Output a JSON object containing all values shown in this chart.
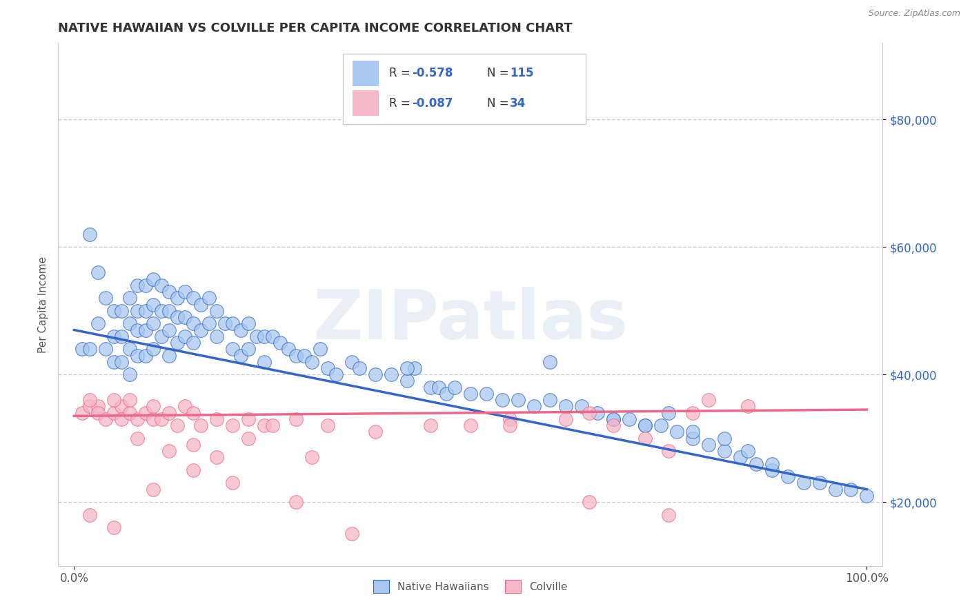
{
  "title": "NATIVE HAWAIIAN VS COLVILLE PER CAPITA INCOME CORRELATION CHART",
  "source": "Source: ZipAtlas.com",
  "ylabel": "Per Capita Income",
  "xlim": [
    -0.02,
    1.02
  ],
  "ylim": [
    10000,
    92000
  ],
  "yticks": [
    20000,
    40000,
    60000,
    80000
  ],
  "ytick_labels": [
    "$20,000",
    "$40,000",
    "$60,000",
    "$80,000"
  ],
  "xticks": [
    0.0,
    1.0
  ],
  "xtick_labels": [
    "0.0%",
    "100.0%"
  ],
  "blue_color": "#A8C8F0",
  "pink_color": "#F5B8C8",
  "blue_line_color": "#3366CC",
  "pink_line_color": "#EE6688",
  "legend_R1_val": "-0.578",
  "legend_N1_val": "115",
  "legend_R2_val": "-0.087",
  "legend_N2_val": "34",
  "legend_label1": "Native Hawaiians",
  "legend_label2": "Colville",
  "watermark": "ZIPatlas",
  "bg_color": "#FFFFFF",
  "blue_scatter_x": [
    0.01,
    0.02,
    0.02,
    0.03,
    0.03,
    0.04,
    0.04,
    0.05,
    0.05,
    0.05,
    0.06,
    0.06,
    0.06,
    0.07,
    0.07,
    0.07,
    0.07,
    0.08,
    0.08,
    0.08,
    0.08,
    0.09,
    0.09,
    0.09,
    0.09,
    0.1,
    0.1,
    0.1,
    0.1,
    0.11,
    0.11,
    0.11,
    0.12,
    0.12,
    0.12,
    0.12,
    0.13,
    0.13,
    0.13,
    0.14,
    0.14,
    0.14,
    0.15,
    0.15,
    0.15,
    0.16,
    0.16,
    0.17,
    0.17,
    0.18,
    0.18,
    0.19,
    0.2,
    0.2,
    0.21,
    0.21,
    0.22,
    0.22,
    0.23,
    0.24,
    0.24,
    0.25,
    0.26,
    0.27,
    0.28,
    0.29,
    0.3,
    0.31,
    0.32,
    0.33,
    0.35,
    0.36,
    0.38,
    0.4,
    0.42,
    0.43,
    0.45,
    0.46,
    0.47,
    0.48,
    0.5,
    0.52,
    0.54,
    0.56,
    0.58,
    0.6,
    0.62,
    0.64,
    0.66,
    0.68,
    0.7,
    0.72,
    0.74,
    0.76,
    0.78,
    0.8,
    0.82,
    0.84,
    0.86,
    0.88,
    0.9,
    0.92,
    0.94,
    0.96,
    0.98,
    1.0,
    0.42,
    0.6,
    0.75,
    0.85,
    0.68,
    0.72,
    0.78,
    0.82,
    0.88
  ],
  "blue_scatter_y": [
    44000,
    62000,
    44000,
    56000,
    48000,
    52000,
    44000,
    50000,
    46000,
    42000,
    50000,
    46000,
    42000,
    52000,
    48000,
    44000,
    40000,
    54000,
    50000,
    47000,
    43000,
    54000,
    50000,
    47000,
    43000,
    55000,
    51000,
    48000,
    44000,
    54000,
    50000,
    46000,
    53000,
    50000,
    47000,
    43000,
    52000,
    49000,
    45000,
    53000,
    49000,
    46000,
    52000,
    48000,
    45000,
    51000,
    47000,
    52000,
    48000,
    50000,
    46000,
    48000,
    48000,
    44000,
    47000,
    43000,
    48000,
    44000,
    46000,
    46000,
    42000,
    46000,
    45000,
    44000,
    43000,
    43000,
    42000,
    44000,
    41000,
    40000,
    42000,
    41000,
    40000,
    40000,
    39000,
    41000,
    38000,
    38000,
    37000,
    38000,
    37000,
    37000,
    36000,
    36000,
    35000,
    36000,
    35000,
    35000,
    34000,
    33000,
    33000,
    32000,
    32000,
    31000,
    30000,
    29000,
    28000,
    27000,
    26000,
    25000,
    24000,
    23000,
    23000,
    22000,
    22000,
    21000,
    41000,
    42000,
    34000,
    28000,
    33000,
    32000,
    31000,
    30000,
    26000
  ],
  "pink_scatter_x": [
    0.01,
    0.02,
    0.03,
    0.03,
    0.04,
    0.05,
    0.06,
    0.06,
    0.07,
    0.08,
    0.09,
    0.1,
    0.11,
    0.12,
    0.13,
    0.14,
    0.15,
    0.16,
    0.18,
    0.2,
    0.22,
    0.24,
    0.28,
    0.32,
    0.38,
    0.45,
    0.5,
    0.55,
    0.62,
    0.65,
    0.68,
    0.72,
    0.78,
    0.85
  ],
  "pink_scatter_y": [
    34000,
    35000,
    35000,
    34000,
    33000,
    34000,
    35000,
    33000,
    34000,
    33000,
    34000,
    33000,
    33000,
    34000,
    32000,
    35000,
    34000,
    32000,
    33000,
    32000,
    33000,
    32000,
    33000,
    32000,
    31000,
    32000,
    32000,
    33000,
    33000,
    34000,
    32000,
    30000,
    34000,
    35000
  ],
  "pink_scatter_x2": [
    0.02,
    0.05,
    0.07,
    0.08,
    0.1,
    0.12,
    0.15,
    0.18,
    0.22,
    0.25,
    0.3,
    0.55,
    0.75,
    0.8
  ],
  "pink_scatter_y2": [
    36000,
    36000,
    36000,
    30000,
    35000,
    28000,
    29000,
    27000,
    30000,
    32000,
    27000,
    32000,
    28000,
    36000
  ],
  "pink_scatter_x3": [
    0.02,
    0.05,
    0.1,
    0.15,
    0.2,
    0.28,
    0.35,
    0.65,
    0.75
  ],
  "pink_scatter_y3": [
    18000,
    16000,
    22000,
    25000,
    23000,
    20000,
    15000,
    20000,
    18000
  ],
  "blue_trend_x": [
    0.0,
    1.0
  ],
  "blue_trend_y": [
    47000,
    22000
  ],
  "pink_trend_x": [
    0.0,
    1.0
  ],
  "pink_trend_y": [
    33500,
    34500
  ],
  "title_fontsize": 13,
  "axis_label_fontsize": 11,
  "tick_fontsize": 12,
  "source_fontsize": 9,
  "legend_fontsize": 12
}
